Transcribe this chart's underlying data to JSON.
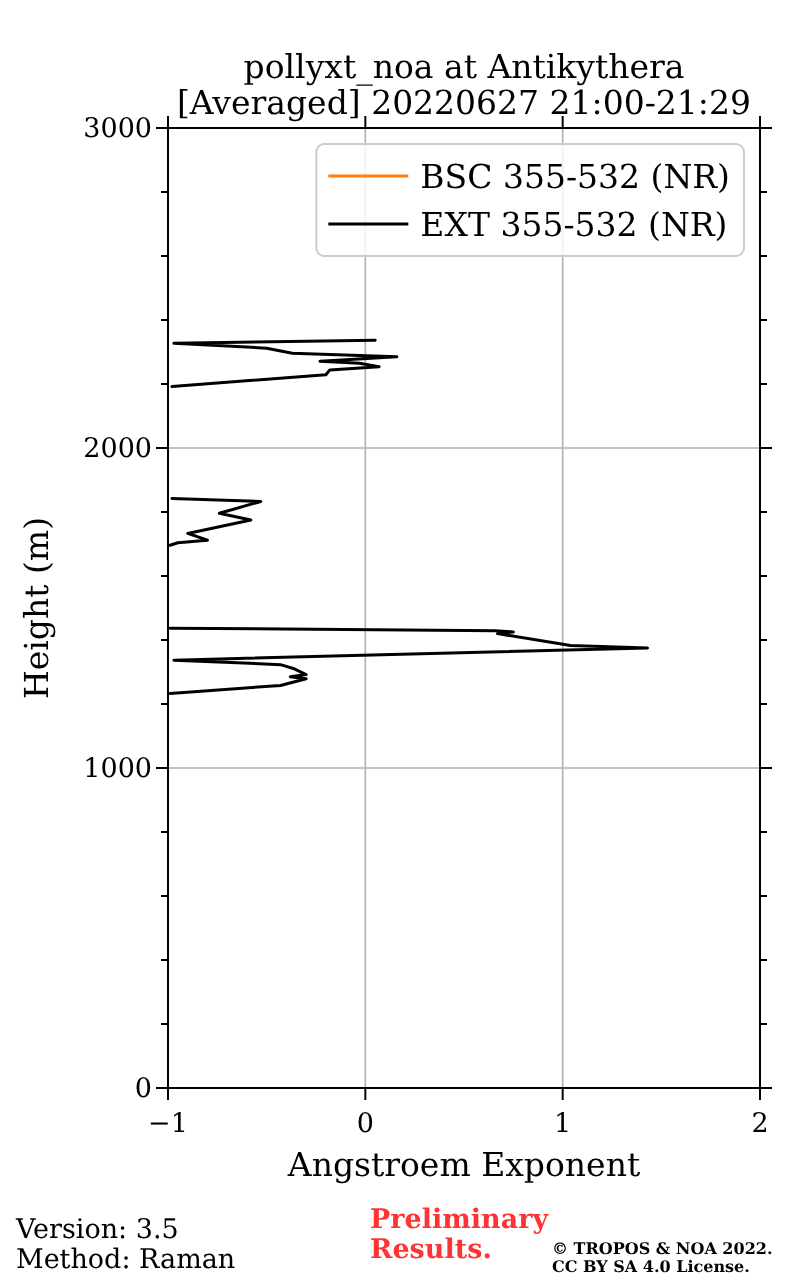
{
  "chart_data": {
    "type": "line",
    "title": "pollyxt_noa at Antikythera",
    "subtitle": "[Averaged] 20220627 21:00-21:29",
    "xlabel": "Angstroem Exponent",
    "ylabel": "Height (m)",
    "series": [
      {
        "name": "BSC 355-532 (NR)",
        "color": "#ff7f0e"
      },
      {
        "name": "EXT 355-532 (NR)",
        "color": "#000000",
        "x": [
          -0.99,
          -0.43,
          -0.3,
          -0.38,
          -0.3,
          -0.365,
          -0.43,
          -0.97,
          1.43,
          1.04,
          0.67,
          0.75,
          0.66,
          -0.99,
          null,
          -0.99,
          -0.95,
          -0.8,
          -0.9,
          -0.58,
          -0.74,
          -0.53,
          -0.98,
          null,
          -0.98,
          -0.2,
          -0.18,
          0.07,
          -0.03,
          -0.23,
          0.16,
          -0.37,
          -0.5,
          -0.97,
          0.05
        ],
        "values": [
          1233,
          1258,
          1279,
          1285,
          1292,
          1311,
          1323,
          1337,
          1375,
          1383,
          1420,
          1425,
          1429,
          1437,
          null,
          1696,
          1704,
          1712,
          1733,
          1775,
          1796,
          1833,
          1842,
          null,
          2192,
          2229,
          2244,
          2254,
          2265,
          2271,
          2285,
          2296,
          2312,
          2327,
          2337
        ]
      }
    ],
    "xlim": [
      -1,
      2
    ],
    "xticks": [
      {
        "value": -1,
        "label": "−1"
      },
      0,
      1,
      2
    ],
    "ylim": [
      0,
      3000
    ],
    "yticks": [
      0,
      {
        "value": 200,
        "label": null
      },
      {
        "value": 400,
        "label": null
      },
      {
        "value": 600,
        "label": null
      },
      {
        "value": 800,
        "label": null
      },
      1000,
      {
        "value": 1200,
        "label": null
      },
      {
        "value": 1400,
        "label": null
      },
      {
        "value": 1600,
        "label": null
      },
      {
        "value": 1800,
        "label": null
      },
      2000,
      {
        "value": 2200,
        "label": null
      },
      {
        "value": 2400,
        "label": null
      },
      {
        "value": 2600,
        "label": null
      },
      {
        "value": 2800,
        "label": null
      },
      3000
    ],
    "grid": true,
    "legend": "top right",
    "annotations": [
      "Version: 3.5",
      "Method: Raman",
      "Preliminary Results.",
      "© TROPOS & NOA 2022.",
      "CC BY SA 4.0 License."
    ]
  }
}
